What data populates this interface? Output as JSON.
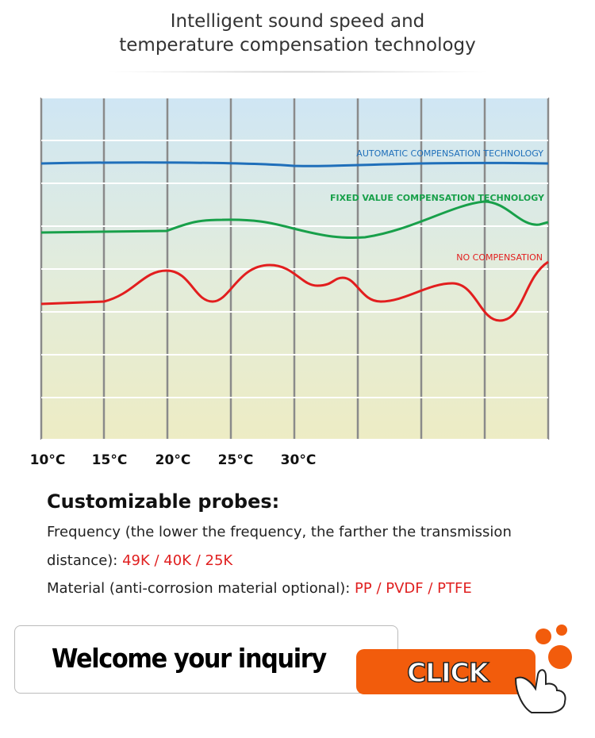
{
  "header": {
    "title_lines": [
      "Intelligent sound speed and",
      "temperature compensation technology"
    ]
  },
  "chart": {
    "x_labels": [
      "10°C",
      "15°C",
      "20°C",
      "25°C",
      "30°C"
    ],
    "curve_labels": [
      "AUTOMATIC COMPENSATION TECHNOLOGY",
      "FIXED VALUE COMPENSATION TECHNOLOGY",
      "NO COMPENSATION"
    ]
  },
  "probes": {
    "heading": "Customizable probes:",
    "frequency": {
      "text": "Frequency (the lower the frequency, the farther the transmission distance):",
      "options": "49K / 40K / 25K"
    },
    "material": {
      "text": "Material (anti-corrosion material optional):",
      "options": "PP / PVDF / PTFE"
    }
  },
  "inquiry": {
    "text": "Welcome your inquiry",
    "button": "CLICK"
  }
}
